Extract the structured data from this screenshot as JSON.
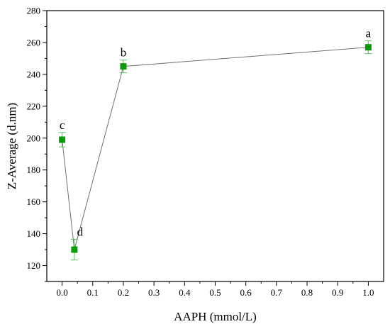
{
  "chart_data": {
    "type": "line",
    "title": "",
    "xlabel": "AAPH (mmol/L)",
    "ylabel": "Z-Average (d.nm)",
    "xlim": [
      -0.05,
      1.05
    ],
    "ylim": [
      110,
      280
    ],
    "x_ticks": [
      "0.0",
      "0.1",
      "0.2",
      "0.3",
      "0.4",
      "0.5",
      "0.6",
      "0.7",
      "0.8",
      "0.9",
      "1.0"
    ],
    "y_ticks": [
      "120",
      "140",
      "160",
      "180",
      "200",
      "220",
      "240",
      "260",
      "280"
    ],
    "grid": false,
    "marker": "square",
    "colors": {
      "marker": "#0a9a0a",
      "line": "#707070",
      "error_bar": "#5cbf5c",
      "axis": "#000000"
    },
    "series": [
      {
        "x": [
          0.0,
          0.04,
          0.2,
          1.0
        ],
        "y": [
          199,
          130,
          245,
          257
        ],
        "error": [
          4.5,
          6.5,
          4,
          4
        ],
        "labels": [
          "c",
          "d",
          "b",
          "a"
        ]
      }
    ]
  }
}
